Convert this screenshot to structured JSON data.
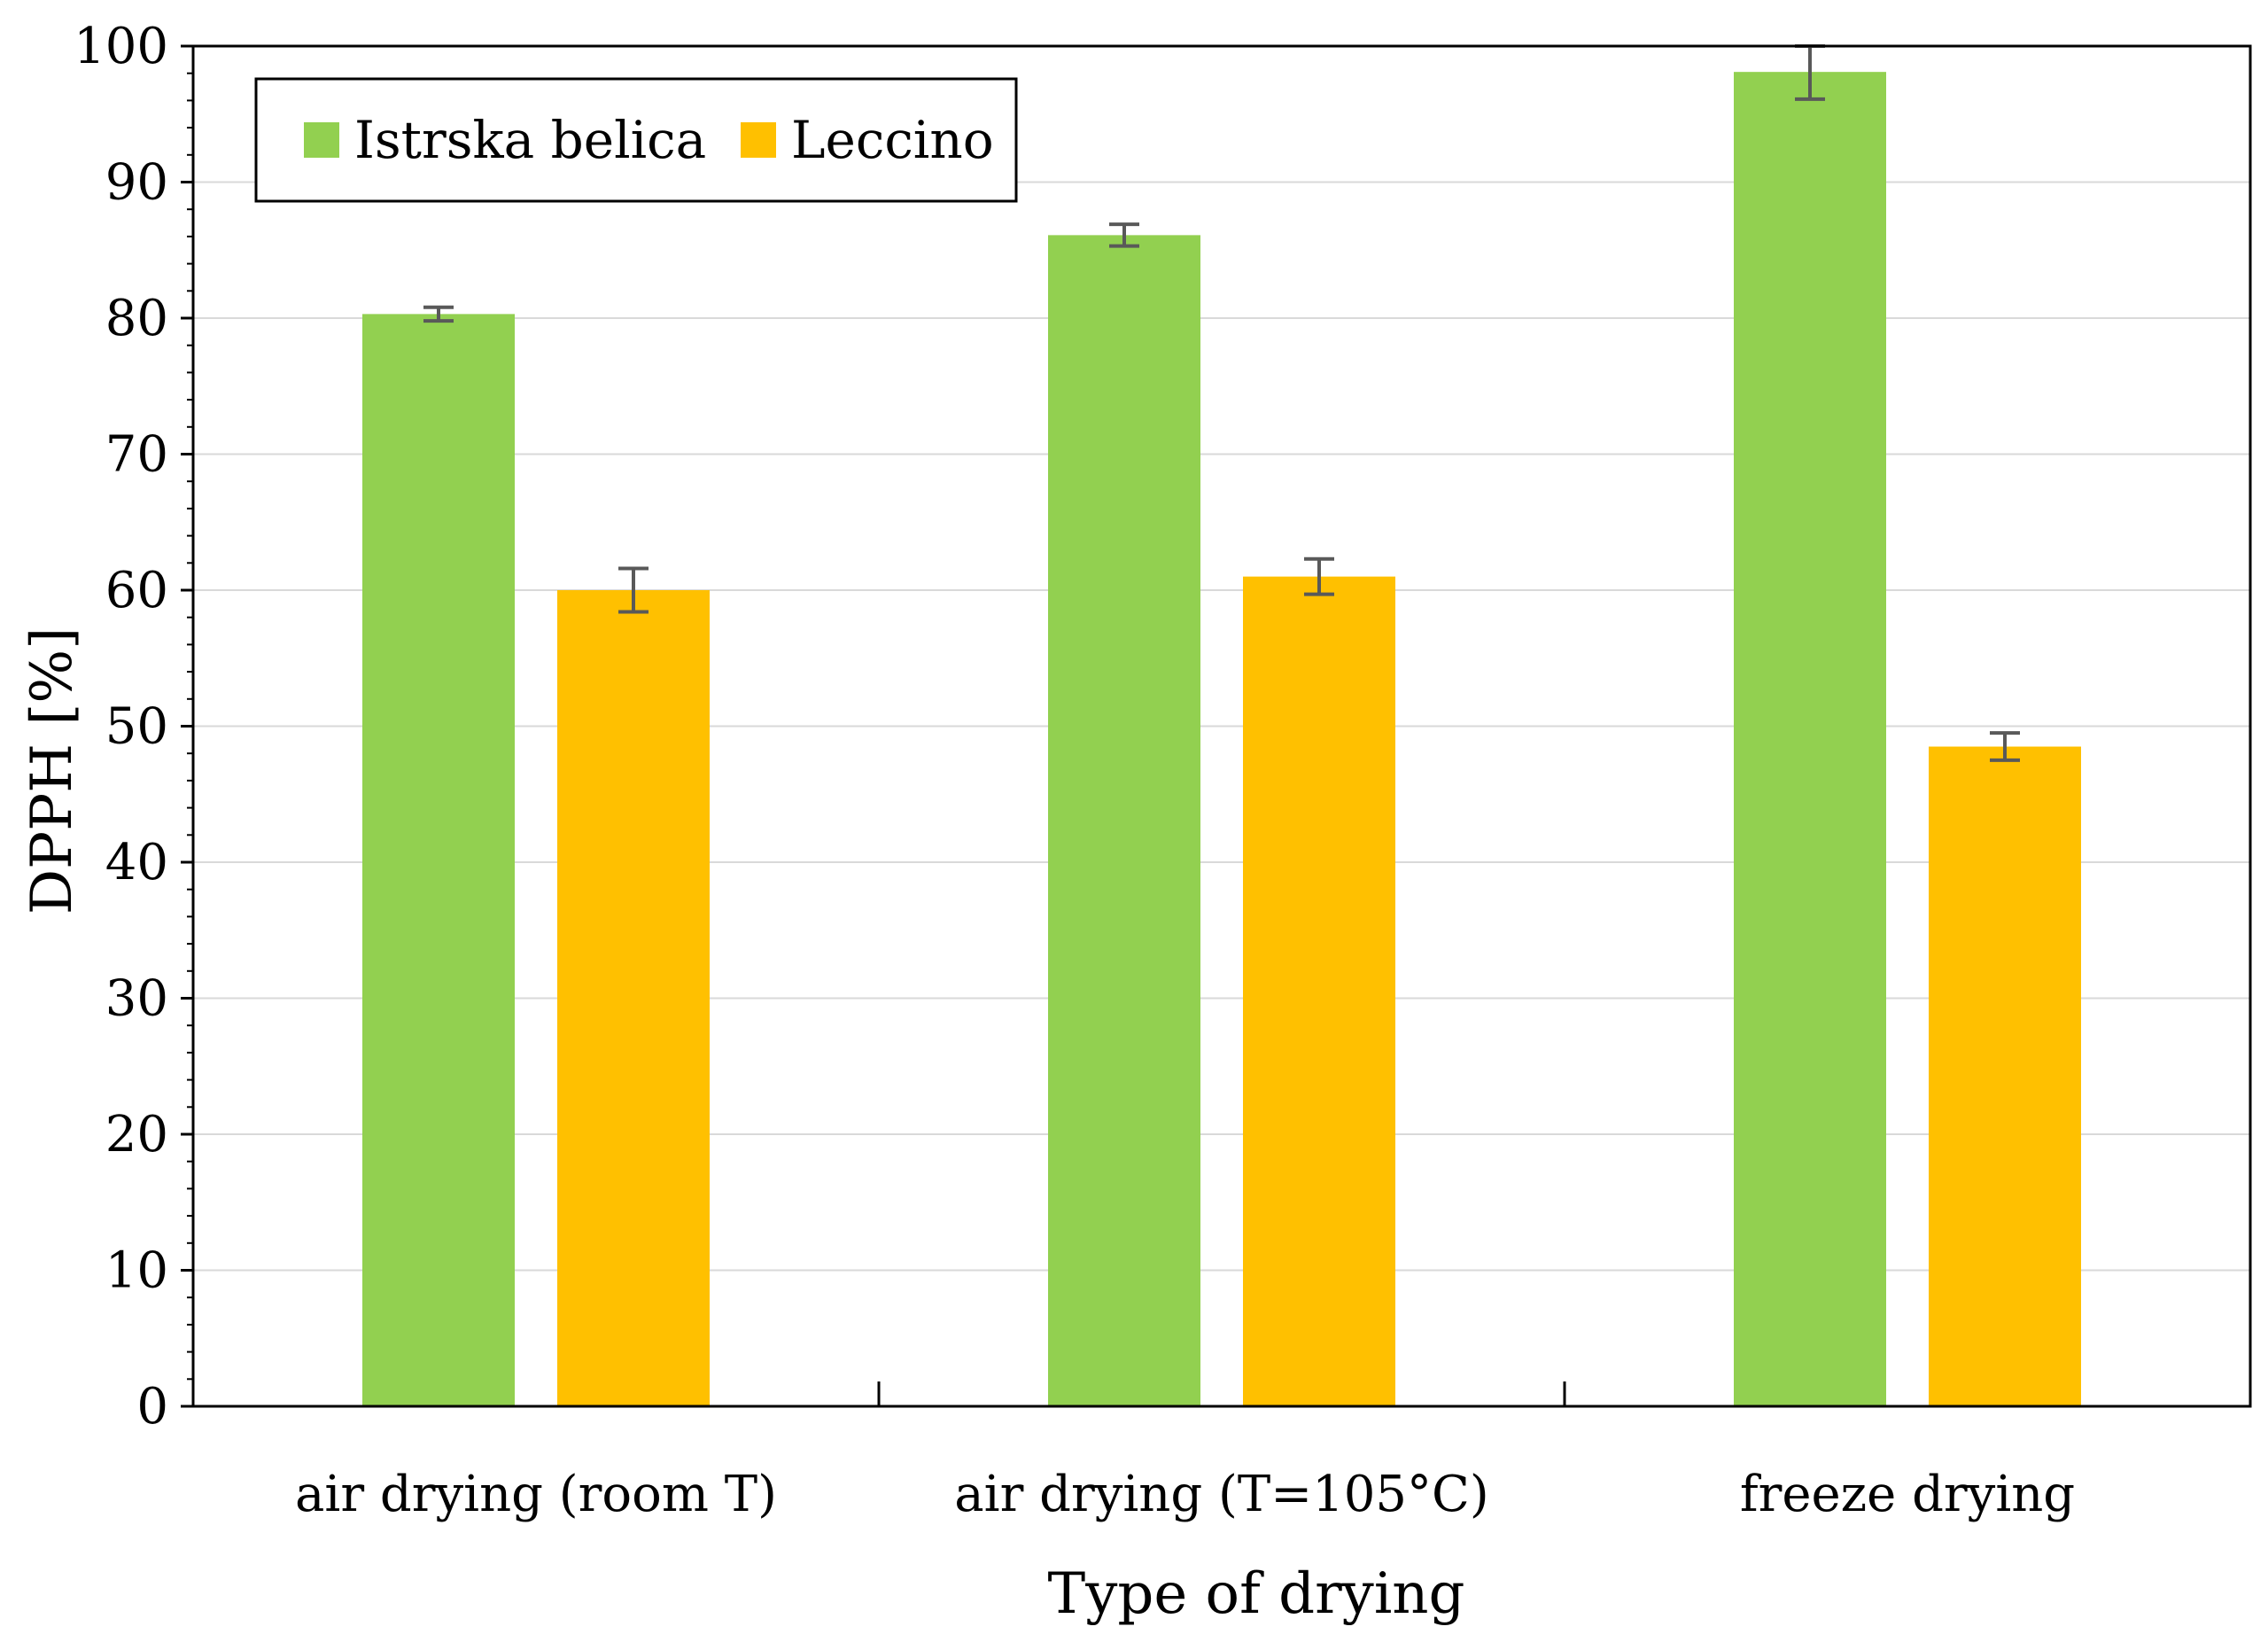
{
  "chart_data": {
    "type": "bar",
    "title": "",
    "xlabel": "Type of drying",
    "ylabel": "DPPH [%]",
    "ylim": [
      0,
      100
    ],
    "yticks": [
      "0",
      "10",
      "20",
      "30",
      "40",
      "50",
      "60",
      "70",
      "80",
      "90",
      "100"
    ],
    "categories": [
      "air drying (room T)",
      "air drying (T=105°C)",
      "freeze drying"
    ],
    "series": [
      {
        "name": "Istrska belica",
        "color": "#92d050",
        "values": [
          80.3,
          86.1,
          98.1
        ],
        "errors": [
          0.5,
          0.8,
          2.0
        ]
      },
      {
        "name": "Leccino",
        "color": "#ffc000",
        "values": [
          60.0,
          61.0,
          48.5
        ],
        "errors": [
          1.6,
          1.3,
          1.0
        ]
      }
    ],
    "grid": true,
    "legend_position": "top-left",
    "error_bar_color": "#595959"
  }
}
